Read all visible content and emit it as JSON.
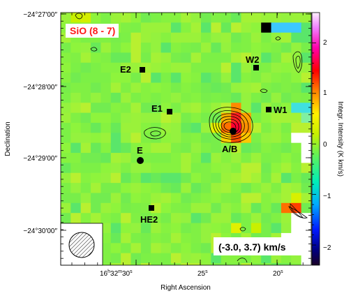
{
  "chart_data": {
    "type": "heatmap",
    "title": "SiO (8 - 7)",
    "velocity_range": "(-3.0, 3.7) km/s",
    "xlabel": "Right Ascension",
    "ylabel": "Declination",
    "colorbar_label": "Integr. Intensity (K km/s)",
    "colorbar_range": [
      -2.4,
      2.6
    ],
    "colorbar_ticks": [
      "2",
      "1",
      "0",
      "−1",
      "−2"
    ],
    "x_ticks": [
      {
        "label_h": "16",
        "sup_h": "h",
        "label_m": "32",
        "sup_m": "m",
        "label_s": "30",
        "sup_s": "s"
      },
      {
        "label": "25",
        "sup": "s"
      },
      {
        "label": "20",
        "sup": "s"
      }
    ],
    "y_ticks": [
      "−24°27′00″",
      "−24°28′00″",
      "−24°29′00″",
      "−24°30′00″"
    ],
    "sources": [
      {
        "name": "E2",
        "marker": "square"
      },
      {
        "name": "E1",
        "marker": "square"
      },
      {
        "name": "W2",
        "marker": "square"
      },
      {
        "name": "W1",
        "marker": "square"
      },
      {
        "name": "A/B",
        "marker": "circle"
      },
      {
        "name": "E",
        "marker": "circle"
      },
      {
        "name": "HE2",
        "marker": "square"
      }
    ],
    "beam": "hatched-circle"
  }
}
